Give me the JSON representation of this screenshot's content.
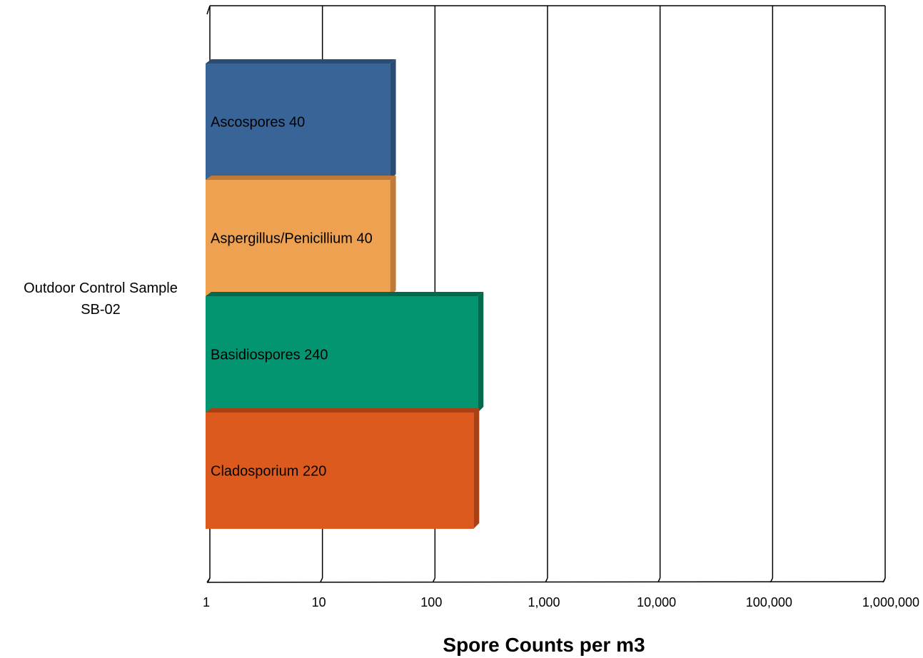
{
  "chart_data": {
    "type": "bar",
    "orientation": "horizontal",
    "stacked": false,
    "x_scale": "log",
    "xlim": [
      1,
      1000000
    ],
    "x_ticks": [
      {
        "value": 1,
        "label": "1"
      },
      {
        "value": 10,
        "label": "10"
      },
      {
        "value": 100,
        "label": "100"
      },
      {
        "value": 1000,
        "label": "1,000"
      },
      {
        "value": 10000,
        "label": "10,000"
      },
      {
        "value": 100000,
        "label": "100,000"
      },
      {
        "value": 1000000,
        "label": "1,000,000"
      }
    ],
    "categories": [
      "Outdoor Control Sample SB-02"
    ],
    "category_label_lines": [
      "Outdoor Control Sample",
      "SB-02"
    ],
    "xlabel": "Spore Counts per m3",
    "ylabel": "",
    "grid": true,
    "legend": "none",
    "series": [
      {
        "name": "Ascospores",
        "value": 40,
        "label": "Ascospores 40",
        "color": "#386498",
        "shade": "#2a4c74"
      },
      {
        "name": "Aspergillus/Penicillium",
        "value": 40,
        "label": "Aspergillus/Penicillium 40",
        "color": "#eea251",
        "shade": "#c07a38"
      },
      {
        "name": "Basidiospores",
        "value": 240,
        "label": "Basidiospores 240",
        "color": "#039570",
        "shade": "#016a4e"
      },
      {
        "name": "Cladosporium",
        "value": 220,
        "label": "Cladosporium 220",
        "color": "#dd5a1e",
        "shade": "#a84216"
      }
    ]
  }
}
